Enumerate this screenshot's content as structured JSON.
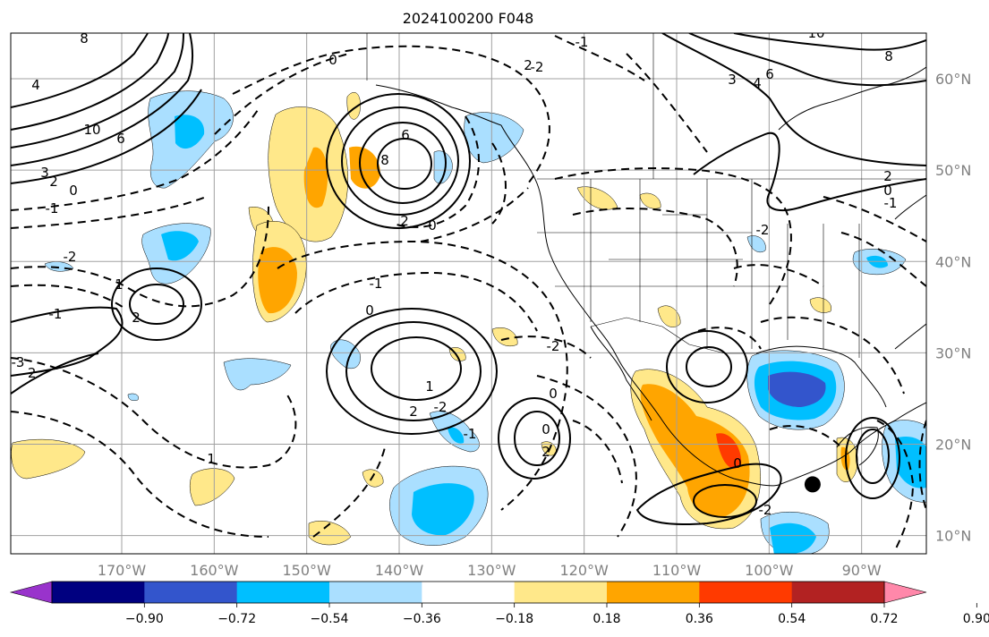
{
  "title": "2024100200 F048",
  "map": {
    "type": "contour-map",
    "lon_range": [
      -182,
      -83
    ],
    "lat_range": [
      8,
      65
    ],
    "lon_ticks": [
      "170°W",
      "160°W",
      "150°W",
      "140°W",
      "130°W",
      "120°W",
      "110°W",
      "100°W",
      "90°W"
    ],
    "lon_tick_values": [
      -170,
      -160,
      -150,
      -140,
      -130,
      -120,
      -110,
      -100,
      -90
    ],
    "lat_ticks": [
      "60°N",
      "50°N",
      "40°N",
      "30°N",
      "20°N",
      "10°N"
    ],
    "lat_tick_values": [
      60,
      50,
      40,
      30,
      20,
      10
    ],
    "marker": {
      "lon": -95.3,
      "lat": 15.6
    },
    "contour_labels": [
      "8",
      "10",
      "6",
      "4",
      "3",
      "2",
      "0",
      "-1",
      "-2",
      "-3",
      "10",
      "8",
      "6",
      "4",
      "3",
      "2",
      "0",
      "-2",
      "-1",
      "6",
      "8",
      "2",
      "2",
      "-2",
      "-1",
      "0",
      "1",
      "-1",
      "2",
      "-2",
      "0",
      "1",
      "2",
      "-2",
      "0",
      "-1",
      "-2",
      "0",
      "-1",
      "0",
      "2",
      "1",
      "0",
      "-2"
    ]
  },
  "colorbar": {
    "colors": [
      "#9933cc",
      "#000080",
      "#3355cc",
      "#00bfff",
      "#aadfff",
      "#ffffff",
      "#ffe88a",
      "#ffa500",
      "#ff3a00",
      "#b22222",
      "#ff88aa"
    ],
    "tick_labels": [
      "−0.90",
      "−0.72",
      "−0.54",
      "−0.36",
      "−0.18",
      "0.18",
      "0.36",
      "0.54",
      "0.72",
      "0.90"
    ],
    "levels": [
      -0.9,
      -0.72,
      -0.54,
      -0.36,
      -0.18,
      0.18,
      0.36,
      0.54,
      0.72,
      0.9
    ],
    "extend": "both"
  },
  "colors": {
    "gridline": "#a0a0a0",
    "coastline": "#000000",
    "contour": "#000000"
  }
}
